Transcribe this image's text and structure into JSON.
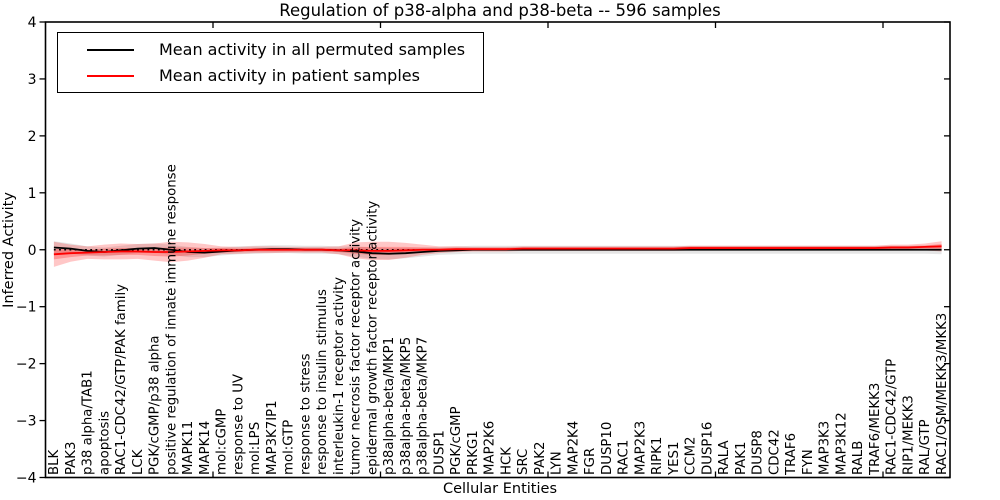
{
  "chart_data": {
    "type": "line",
    "title": "Regulation of p38-alpha and p38-beta -- 596 samples",
    "xlabel": "Cellular Entities",
    "ylabel": "Inferred Activity",
    "ylim": [
      -4,
      4
    ],
    "yticks": [
      4,
      3,
      2,
      1,
      0,
      -1,
      -2,
      -3,
      -4
    ],
    "xticks": [
      10,
      20,
      30,
      40,
      50
    ],
    "grid": false,
    "legend_position": "upper left",
    "zero_line": {
      "y": 0,
      "style": "dotted",
      "color": "#000000"
    },
    "categories": [
      "BLK",
      "PAK3",
      "p38 alpha/TAB1",
      "apoptosis",
      "RAC1-CDC42/GTP/PAK family",
      "LCK",
      "PGK/cGMP/p38 alpha",
      "positive regulation of innate immune response",
      "MAPK11",
      "MAPK14",
      "mol:cGMP",
      "response to UV",
      "mol:LPS",
      "MAP3K7IP1",
      "mol:GTP",
      "response to stress",
      "response to insulin stimulus",
      "interleukin-1 receptor activity",
      "tumor necrosis factor receptor activity",
      "epidermal growth factor receptor activity",
      "p38alpha-beta/MKP1",
      "p38alpha-beta/MKP5",
      "p38alpha-beta/MKP7",
      "DUSP1",
      "PGK/cGMP",
      "PRKG1",
      "MAP2K6",
      "HCK",
      "SRC",
      "PAK2",
      "LYN",
      "MAP2K4",
      "FGR",
      "DUSP10",
      "RAC1",
      "MAP2K3",
      "RIPK1",
      "YES1",
      "CCM2",
      "DUSP16",
      "RALA",
      "PAK1",
      "DUSP8",
      "CDC42",
      "TRAF6",
      "FYN",
      "MAP3K3",
      "MAP3K12",
      "RALB",
      "TRAF6/MEKK3",
      "RAC1-CDC42/GTP",
      "RIP1/MEKK3",
      "RAL/GTP",
      "RAC1/OSM/MEKK3/MKK3"
    ],
    "series": [
      {
        "name": "Mean activity in all permuted samples",
        "color": "#000000",
        "band_color": "rgba(0,0,0,0.10)",
        "values": [
          0.04,
          0.02,
          -0.02,
          -0.04,
          -0.01,
          0.02,
          0.03,
          0.0,
          -0.04,
          -0.05,
          -0.03,
          -0.01,
          0.0,
          0.01,
          0.01,
          0.0,
          0.0,
          -0.01,
          -0.03,
          -0.06,
          -0.07,
          -0.06,
          -0.04,
          -0.02,
          -0.01,
          0,
          0,
          0,
          0,
          0,
          0,
          0,
          0,
          0,
          0,
          0,
          0,
          0,
          0,
          0,
          0,
          0,
          0,
          0,
          0,
          0,
          0,
          0,
          0,
          0,
          0,
          0,
          0,
          0
        ],
        "band": [
          0.11,
          0.09,
          0.08,
          0.08,
          0.08,
          0.08,
          0.08,
          0.09,
          0.09,
          0.08,
          0.07,
          0.07,
          0.07,
          0.07,
          0.07,
          0.07,
          0.07,
          0.07,
          0.09,
          0.1,
          0.1,
          0.09,
          0.08,
          0.07,
          0.07,
          0.07,
          0.07,
          0.07,
          0.07,
          0.07,
          0.07,
          0.07,
          0.07,
          0.07,
          0.07,
          0.07,
          0.07,
          0.07,
          0.07,
          0.07,
          0.07,
          0.07,
          0.07,
          0.07,
          0.07,
          0.07,
          0.07,
          0.07,
          0.07,
          0.07,
          0.07,
          0.07,
          0.07,
          0.08
        ]
      },
      {
        "name": "Mean activity in patient samples",
        "color": "#ff0000",
        "band_color": "rgba(255,0,0,0.22)",
        "band_inner_color": "rgba(255,0,0,0.25)",
        "values": [
          -0.08,
          -0.06,
          -0.05,
          -0.04,
          -0.03,
          -0.03,
          -0.04,
          -0.04,
          -0.03,
          -0.02,
          -0.01,
          -0.01,
          0.0,
          0.0,
          0.0,
          0.0,
          0.0,
          -0.01,
          -0.01,
          -0.02,
          -0.02,
          -0.01,
          0.0,
          0.0,
          0.01,
          0.01,
          0.01,
          0.01,
          0.02,
          0.02,
          0.02,
          0.02,
          0.02,
          0.02,
          0.02,
          0.02,
          0.02,
          0.02,
          0.03,
          0.03,
          0.03,
          0.03,
          0.03,
          0.03,
          0.03,
          0.03,
          0.03,
          0.03,
          0.03,
          0.03,
          0.04,
          0.04,
          0.05,
          0.06
        ],
        "band": [
          0.22,
          0.15,
          0.11,
          0.13,
          0.14,
          0.13,
          0.15,
          0.18,
          0.16,
          0.12,
          0.07,
          0.06,
          0.06,
          0.06,
          0.05,
          0.05,
          0.05,
          0.07,
          0.14,
          0.16,
          0.16,
          0.13,
          0.09,
          0.06,
          0.05,
          0.04,
          0.04,
          0.04,
          0.04,
          0.04,
          0.04,
          0.04,
          0.04,
          0.04,
          0.04,
          0.04,
          0.04,
          0.04,
          0.04,
          0.04,
          0.04,
          0.04,
          0.04,
          0.04,
          0.04,
          0.04,
          0.04,
          0.04,
          0.04,
          0.04,
          0.05,
          0.05,
          0.06,
          0.09
        ],
        "band_inner": [
          0.09,
          0.07,
          0.05,
          0.06,
          0.06,
          0.06,
          0.07,
          0.08,
          0.07,
          0.05,
          0.04,
          0.03,
          0.03,
          0.03,
          0.03,
          0.03,
          0.03,
          0.03,
          0.06,
          0.07,
          0.07,
          0.06,
          0.04,
          0.03,
          0.025,
          0.025,
          0.025,
          0.025,
          0.025,
          0.025,
          0.025,
          0.025,
          0.025,
          0.025,
          0.025,
          0.025,
          0.025,
          0.025,
          0.025,
          0.025,
          0.025,
          0.025,
          0.025,
          0.025,
          0.025,
          0.025,
          0.025,
          0.025,
          0.025,
          0.025,
          0.025,
          0.025,
          0.025,
          0.04
        ]
      }
    ]
  }
}
